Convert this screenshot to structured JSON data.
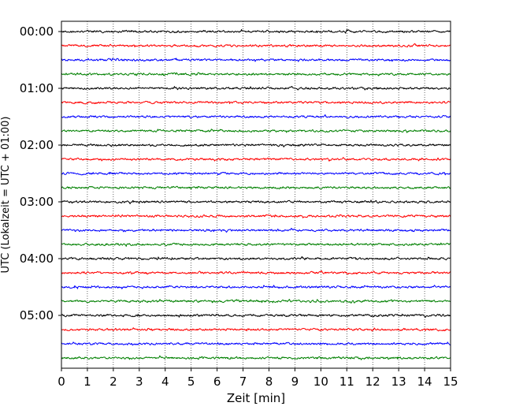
{
  "chart_data": {
    "type": "line",
    "subtype": "helicorder",
    "xlabel": "Zeit  [min]",
    "ylabel": "UTC (Lokalzeit = UTC + 01:00)",
    "xlim": [
      0,
      15
    ],
    "x_ticks": [
      0,
      1,
      2,
      3,
      4,
      5,
      6,
      7,
      8,
      9,
      10,
      11,
      12,
      13,
      14,
      15
    ],
    "x_tick_labels": [
      "0",
      "1",
      "2",
      "3",
      "4",
      "5",
      "6",
      "7",
      "8",
      "9",
      "10",
      "11",
      "12",
      "13",
      "14",
      "15"
    ],
    "y_tick_labels": [
      "00:00",
      "01:00",
      "02:00",
      "03:00",
      "04:00",
      "05:00"
    ],
    "row_minutes": 15,
    "rows": 24,
    "grid": {
      "x": true,
      "y": false,
      "style": "dotted"
    },
    "series_colors": [
      "#000000",
      "#ff0000",
      "#0000ff",
      "#008000"
    ]
  }
}
